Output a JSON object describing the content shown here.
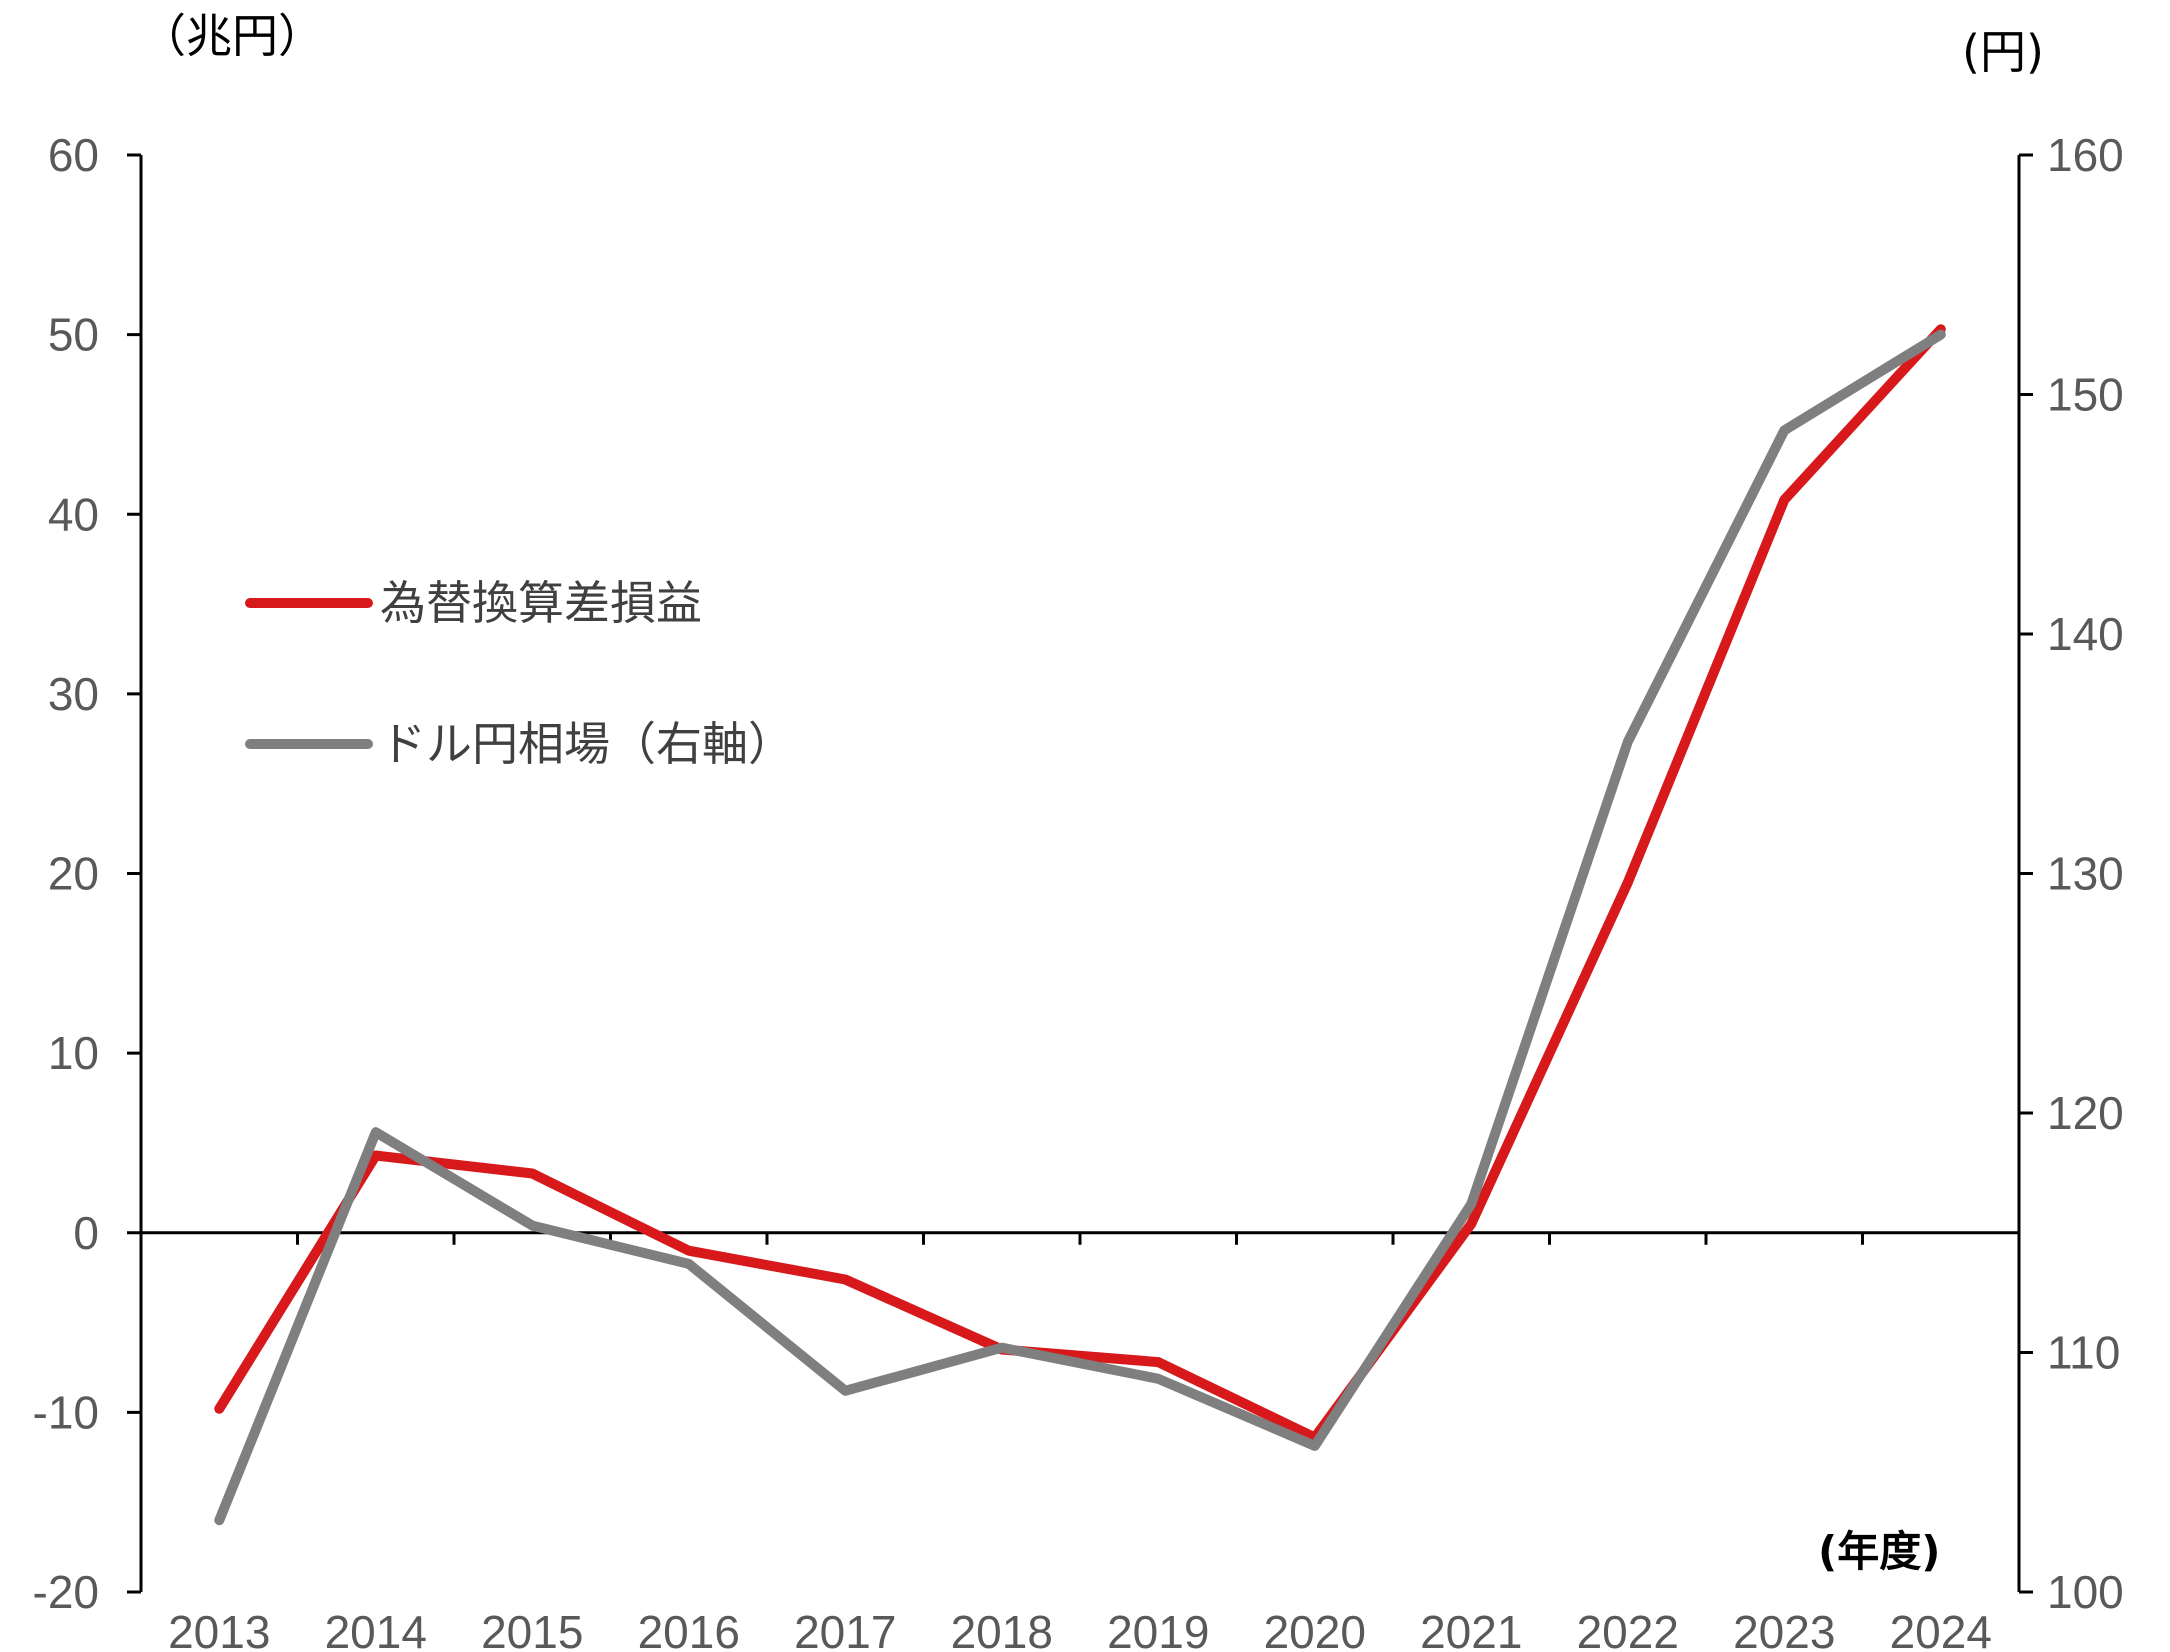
{
  "chart_data": {
    "type": "line",
    "left_axis_unit": "（兆円）",
    "right_axis_unit": "(円)",
    "x_axis_note": "(年度)",
    "categories": [
      "2013",
      "2014",
      "2015",
      "2016",
      "2017",
      "2018",
      "2019",
      "2020",
      "2021",
      "2022",
      "2023",
      "2024"
    ],
    "left_axis": {
      "ylim": [
        -20,
        60
      ],
      "ticks": [
        "-20",
        "-10",
        "0",
        "10",
        "20",
        "30",
        "40",
        "50",
        "60"
      ]
    },
    "right_axis": {
      "ylim": [
        100,
        160
      ],
      "ticks": [
        "100",
        "110",
        "120",
        "130",
        "140",
        "150",
        "160"
      ]
    },
    "series": [
      {
        "name": "為替換算差損益",
        "axis": "left",
        "color": "#d7191c",
        "values": [
          -9.8,
          4.3,
          3.3,
          -1.0,
          -2.6,
          -6.5,
          -7.2,
          -11.4,
          0.5,
          19.5,
          40.8,
          50.3
        ]
      },
      {
        "name": "ドル円相場（右軸）",
        "axis": "right",
        "color": "#7f7f7f",
        "values": [
          103.0,
          119.2,
          115.3,
          113.7,
          108.4,
          110.2,
          108.9,
          106.1,
          116.2,
          135.5,
          148.5,
          152.5
        ]
      }
    ],
    "legend": "left, upper-middle",
    "grid": false
  }
}
